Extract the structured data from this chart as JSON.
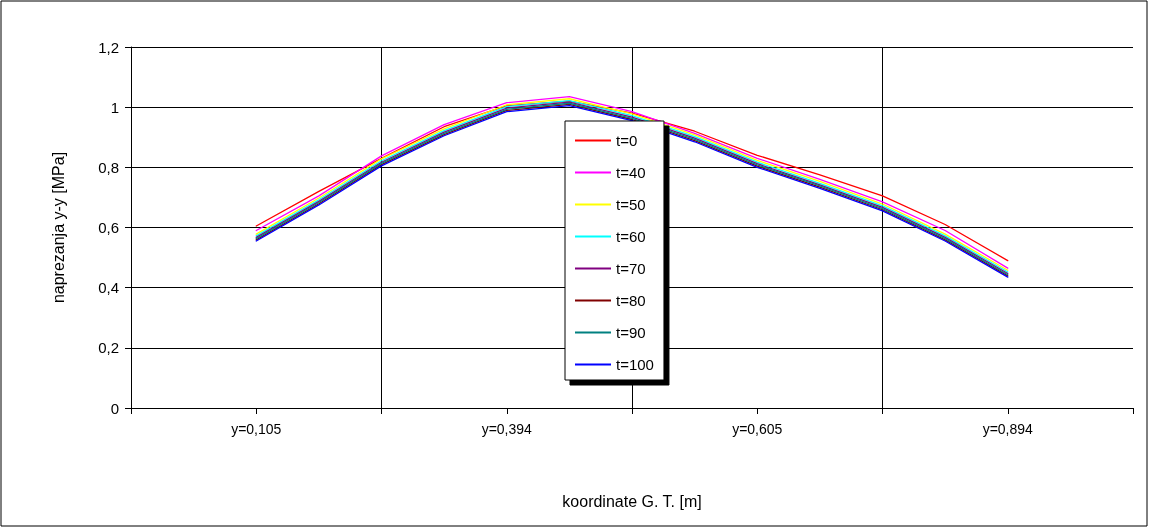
{
  "chart_data": {
    "type": "line",
    "xlabel": "koordinate G. T. [m]",
    "ylabel": "naprezanja y-y [MPa]",
    "categories": [
      null,
      null,
      "y=0,105",
      null,
      null,
      null,
      "y=0,394",
      null,
      null,
      null,
      "y=0,605",
      null,
      null,
      null,
      "y=0,894",
      null,
      null
    ],
    "ylim": [
      0,
      1.2
    ],
    "yticks": [
      0,
      {
        "value": 0.2,
        "label": "0,2"
      },
      {
        "value": 0.4,
        "label": "0,4"
      },
      {
        "value": 0.6,
        "label": "0,6"
      },
      {
        "value": 0.8,
        "label": "0,8"
      },
      1,
      {
        "value": 1.2,
        "label": "1,2"
      }
    ],
    "grid": true,
    "legend": "center",
    "marker": "none",
    "line_style": "solid",
    "series": [
      {
        "name": "t=0",
        "color": "#ff0000",
        "values": [
          null,
          null,
          0.605,
          0.72,
          0.83,
          0.935,
          1.005,
          1.02,
          0.98,
          0.92,
          0.84,
          0.775,
          0.705,
          0.61,
          0.49,
          null,
          null
        ]
      },
      {
        "name": "t=40",
        "color": "#ff00ff",
        "values": [
          null,
          null,
          0.59,
          0.705,
          0.838,
          0.942,
          1.015,
          1.035,
          0.985,
          0.913,
          0.83,
          0.76,
          0.685,
          0.59,
          0.465,
          null,
          null
        ]
      },
      {
        "name": "t=50",
        "color": "#ffff00",
        "values": [
          null,
          null,
          0.578,
          0.698,
          0.828,
          0.928,
          1.008,
          1.028,
          0.978,
          0.908,
          0.823,
          0.753,
          0.678,
          0.578,
          0.458,
          null,
          null
        ]
      },
      {
        "name": "t=60",
        "color": "#00ffff",
        "values": [
          null,
          null,
          0.572,
          0.692,
          0.822,
          0.922,
          1.002,
          1.022,
          0.972,
          0.902,
          0.817,
          0.747,
          0.672,
          0.572,
          0.452,
          null,
          null
        ]
      },
      {
        "name": "t=70",
        "color": "#800080",
        "values": [
          null,
          null,
          0.567,
          0.687,
          0.817,
          0.917,
          0.997,
          1.017,
          0.967,
          0.897,
          0.812,
          0.742,
          0.667,
          0.567,
          0.447,
          null,
          null
        ]
      },
      {
        "name": "t=80",
        "color": "#800000",
        "values": [
          null,
          null,
          0.559,
          0.679,
          0.809,
          0.909,
          0.989,
          1.009,
          0.959,
          0.889,
          0.804,
          0.734,
          0.659,
          0.559,
          0.439,
          null,
          null
        ]
      },
      {
        "name": "t=90",
        "color": "#008080",
        "values": [
          null,
          null,
          0.563,
          0.683,
          0.813,
          0.913,
          0.993,
          1.013,
          0.963,
          0.893,
          0.808,
          0.738,
          0.663,
          0.563,
          0.443,
          null,
          null
        ]
      },
      {
        "name": "t=100",
        "color": "#0000ff",
        "values": [
          null,
          null,
          0.555,
          0.675,
          0.805,
          0.905,
          0.985,
          1.005,
          0.955,
          0.885,
          0.8,
          0.73,
          0.655,
          0.555,
          0.435,
          null,
          null
        ]
      }
    ]
  }
}
